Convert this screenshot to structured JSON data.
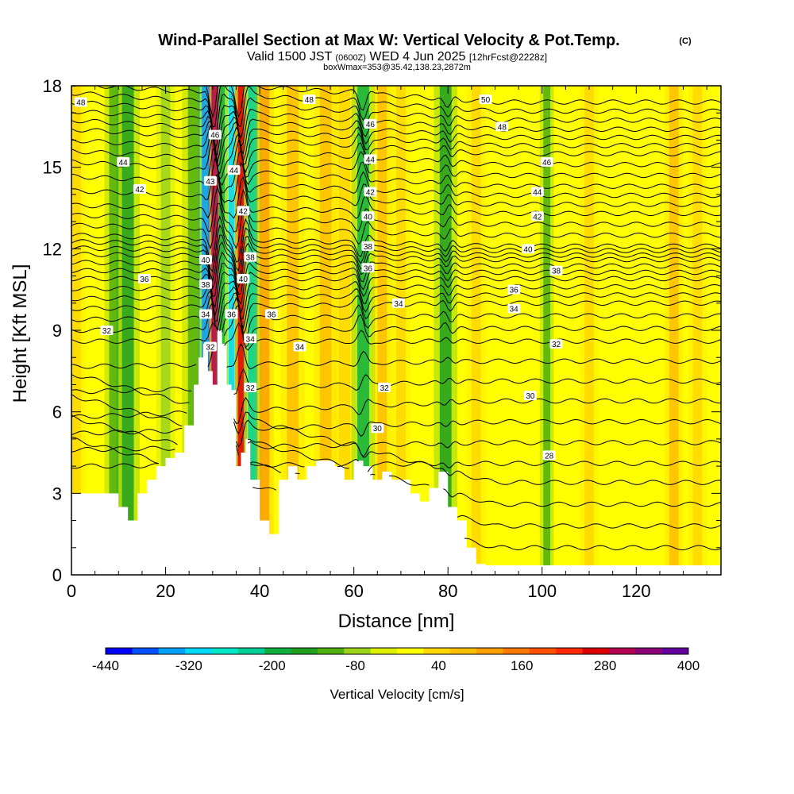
{
  "header": {
    "title": "Wind-Parallel Section at Max W: Vertical Velocity & Pot.Temp.",
    "title_mark": "(C)",
    "valid_prefix": "Valid 1500 JST",
    "valid_utc": "(0600Z)",
    "valid_date": "WED 4 Jun 2025",
    "forecast": "[12hrFcst@2228z]",
    "box_info": "boxWmax=353@35.42,138.23,2872m"
  },
  "chart_data": {
    "type": "heatmap",
    "xlabel": "Distance [nm]",
    "ylabel": "Height [Kft MSL]",
    "xlim": [
      0,
      138
    ],
    "ylim": [
      0,
      18
    ],
    "x_ticks": [
      0,
      20,
      40,
      60,
      80,
      100,
      120
    ],
    "y_ticks": [
      0,
      3,
      6,
      9,
      12,
      15,
      18
    ],
    "grid": false,
    "colorbar": {
      "label": "Vertical Velocity [cm/s]",
      "levels": [
        -440,
        -400,
        -360,
        -320,
        -280,
        -240,
        -200,
        -160,
        -120,
        -80,
        -40,
        0,
        40,
        80,
        120,
        160,
        200,
        240,
        280,
        320,
        360,
        400
      ],
      "tick_labels": [
        "-440",
        "-320",
        "-200",
        "-80",
        "40",
        "160",
        "280",
        "400"
      ],
      "colors": [
        "#0000ff",
        "#0050ff",
        "#00a0ff",
        "#00d8ff",
        "#00e6c8",
        "#00d096",
        "#10b040",
        "#20a020",
        "#50b010",
        "#9cd41c",
        "#dcf000",
        "#ffff00",
        "#ffd800",
        "#ffbe00",
        "#ffa000",
        "#ff7800",
        "#ff5000",
        "#ff2800",
        "#dc0000",
        "#b40050",
        "#8c0078",
        "#6400a0"
      ]
    },
    "vertical_velocity_bands": [
      {
        "x": 1,
        "w": 2,
        "vv": 80
      },
      {
        "x": 9,
        "w": 2,
        "vv": -80
      },
      {
        "x": 12,
        "w": 2.5,
        "vv": -120
      },
      {
        "x": 20,
        "w": 2,
        "vv": -40
      },
      {
        "x": 26,
        "w": 2.5,
        "vv": -80
      },
      {
        "x": 28.5,
        "w": 1.6,
        "vv": -320
      },
      {
        "x": 30.5,
        "w": 1.5,
        "vv": 360
      },
      {
        "x": 32,
        "w": 1.2,
        "vv": -160
      },
      {
        "x": 34,
        "w": 1.2,
        "vv": -280
      },
      {
        "x": 36,
        "w": 1.3,
        "vv": 320
      },
      {
        "x": 38.5,
        "w": 2,
        "vv": -200
      },
      {
        "x": 41,
        "w": 2,
        "vv": 160
      },
      {
        "x": 47,
        "w": 2.5,
        "vv": 120
      },
      {
        "x": 54,
        "w": 2.5,
        "vv": 120
      },
      {
        "x": 58,
        "w": 2.5,
        "vv": 80
      },
      {
        "x": 62,
        "w": 2.5,
        "vv": -160
      },
      {
        "x": 66,
        "w": 2,
        "vv": 120
      },
      {
        "x": 70,
        "w": 2,
        "vv": 80
      },
      {
        "x": 79.5,
        "w": 2.5,
        "vv": -120
      },
      {
        "x": 86,
        "w": 2,
        "vv": 80
      },
      {
        "x": 101,
        "w": 1.5,
        "vv": -80
      },
      {
        "x": 110,
        "w": 2,
        "vv": 80
      },
      {
        "x": 128,
        "w": 2,
        "vv": 120
      },
      {
        "x": 133,
        "w": 2,
        "vv": 80
      }
    ],
    "terrain": {
      "x": [
        0,
        8,
        10,
        12,
        14,
        16,
        18,
        20,
        22,
        24,
        26,
        27,
        28,
        29,
        30,
        31,
        32,
        33,
        34,
        35,
        36,
        37,
        38,
        40,
        42,
        44,
        46,
        48,
        50,
        52,
        54,
        56,
        58,
        60,
        62,
        64,
        66,
        68,
        70,
        72,
        74,
        76,
        78,
        80,
        82,
        84,
        86,
        88,
        90,
        100,
        110,
        120,
        130,
        138
      ],
      "height": [
        3.0,
        3.0,
        2.5,
        2.0,
        3.0,
        3.5,
        4.0,
        4.3,
        4.5,
        5.5,
        7.0,
        8.0,
        8.5,
        7.5,
        7.0,
        9.0,
        8.5,
        7.0,
        6.8,
        4.0,
        4.5,
        5.0,
        3.5,
        2.0,
        1.5,
        3.5,
        4.0,
        3.5,
        4.0,
        4.2,
        4.2,
        4.0,
        3.5,
        4.2,
        4.0,
        3.5,
        3.8,
        3.5,
        3.5,
        3.0,
        2.7,
        3.2,
        3.8,
        2.5,
        2.0,
        1.0,
        0.4,
        0.35,
        0.35,
        0.35,
        0.35,
        0.35,
        0.35,
        0.35
      ]
    },
    "theta_contours": [
      {
        "label": "28",
        "far": 4.1,
        "near": 4.0
      },
      {
        "label": "30",
        "far": 6.4,
        "near": 5.8
      },
      {
        "label": "32",
        "far": 8.6,
        "near": 8.6
      },
      {
        "label": "34",
        "far": 10.0,
        "near": 9.8
      },
      {
        "label": "36",
        "far": 10.9,
        "near": 10.9
      },
      {
        "label": "38",
        "far": 11.6,
        "near": 11.8
      },
      {
        "label": "40",
        "far": 12.1,
        "near": 12.5
      },
      {
        "label": "42",
        "far": 13.3,
        "near": 13.6
      },
      {
        "label": "44",
        "far": 14.3,
        "near": 15.2
      },
      {
        "label": "46",
        "far": 15.5,
        "near": 16.4
      },
      {
        "label": "48",
        "far": 16.4,
        "near": 17.4
      },
      {
        "label": "50",
        "far": 17.4,
        "near": 18.4
      }
    ],
    "contour_labels": [
      {
        "text": "48",
        "x": 2,
        "y": 17.4
      },
      {
        "text": "44",
        "x": 11,
        "y": 15.2
      },
      {
        "text": "42",
        "x": 14.5,
        "y": 14.2
      },
      {
        "text": "36",
        "x": 15.5,
        "y": 10.9
      },
      {
        "text": "32",
        "x": 7.5,
        "y": 9.0
      },
      {
        "text": "46",
        "x": 30.5,
        "y": 16.2
      },
      {
        "text": "44",
        "x": 34.5,
        "y": 14.9
      },
      {
        "text": "43",
        "x": 29.5,
        "y": 14.5
      },
      {
        "text": "42",
        "x": 36.5,
        "y": 13.4
      },
      {
        "text": "40",
        "x": 28.5,
        "y": 11.6
      },
      {
        "text": "38",
        "x": 38,
        "y": 11.7
      },
      {
        "text": "40",
        "x": 36.5,
        "y": 10.9
      },
      {
        "text": "38",
        "x": 28.5,
        "y": 10.7
      },
      {
        "text": "34",
        "x": 28.5,
        "y": 9.6
      },
      {
        "text": "36",
        "x": 34,
        "y": 9.6
      },
      {
        "text": "34",
        "x": 38,
        "y": 8.7
      },
      {
        "text": "32",
        "x": 29.5,
        "y": 8.4
      },
      {
        "text": "32",
        "x": 38,
        "y": 6.9
      },
      {
        "text": "36",
        "x": 42.5,
        "y": 9.6
      },
      {
        "text": "34",
        "x": 48.5,
        "y": 8.4
      },
      {
        "text": "48",
        "x": 50.5,
        "y": 17.5
      },
      {
        "text": "46",
        "x": 63.5,
        "y": 16.6
      },
      {
        "text": "44",
        "x": 63.5,
        "y": 15.3
      },
      {
        "text": "42",
        "x": 63.5,
        "y": 14.1
      },
      {
        "text": "40",
        "x": 63,
        "y": 13.2
      },
      {
        "text": "38",
        "x": 63,
        "y": 12.1
      },
      {
        "text": "36",
        "x": 63,
        "y": 11.3
      },
      {
        "text": "34",
        "x": 69.5,
        "y": 10.0
      },
      {
        "text": "32",
        "x": 66.5,
        "y": 6.9
      },
      {
        "text": "30",
        "x": 65,
        "y": 5.4
      },
      {
        "text": "50",
        "x": 88,
        "y": 17.5
      },
      {
        "text": "48",
        "x": 91.5,
        "y": 16.5
      },
      {
        "text": "46",
        "x": 101,
        "y": 15.2
      },
      {
        "text": "44",
        "x": 99,
        "y": 14.1
      },
      {
        "text": "42",
        "x": 99,
        "y": 13.2
      },
      {
        "text": "40",
        "x": 97,
        "y": 12.0
      },
      {
        "text": "38",
        "x": 103,
        "y": 11.2
      },
      {
        "text": "36",
        "x": 94,
        "y": 10.5
      },
      {
        "text": "34",
        "x": 94,
        "y": 9.8
      },
      {
        "text": "32",
        "x": 103,
        "y": 8.5
      },
      {
        "text": "30",
        "x": 97.5,
        "y": 6.6
      },
      {
        "text": "28",
        "x": 101.5,
        "y": 4.4
      }
    ]
  }
}
